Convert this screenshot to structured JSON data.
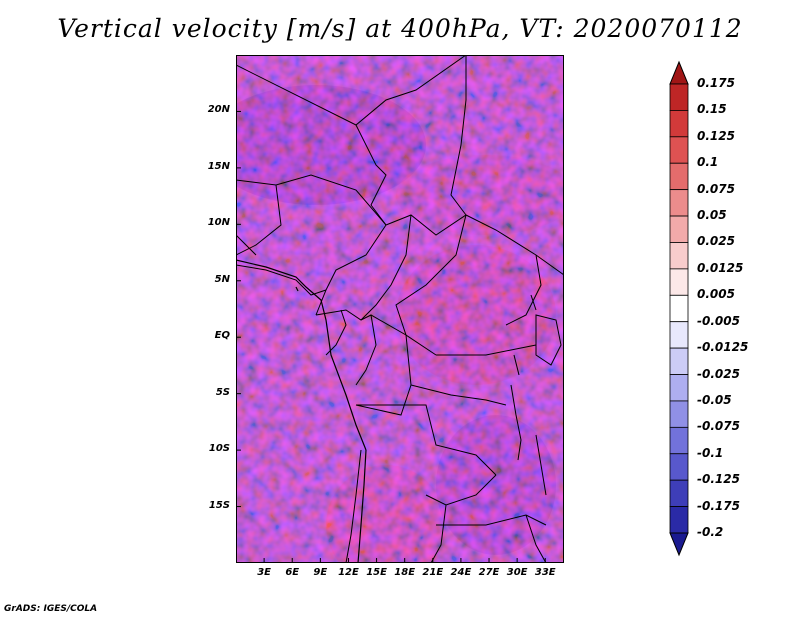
{
  "title": "Vertical velocity [m/s] at 400hPa, VT: 2020070112",
  "footer": "GrADS: IGES/COLA",
  "map": {
    "variable": "Vertical velocity",
    "units": "m/s",
    "level": "400hPa",
    "valid_time": "2020070112",
    "lat_range": [
      -20,
      25
    ],
    "lon_range": [
      0,
      35
    ],
    "lat_ticks": [
      {
        "value": 20,
        "label": "20N"
      },
      {
        "value": 15,
        "label": "15N"
      },
      {
        "value": 10,
        "label": "10N"
      },
      {
        "value": 5,
        "label": "5N"
      },
      {
        "value": 0,
        "label": "EQ"
      },
      {
        "value": -5,
        "label": "5S"
      },
      {
        "value": -10,
        "label": "10S"
      },
      {
        "value": -15,
        "label": "15S"
      }
    ],
    "lon_ticks": [
      {
        "value": 3,
        "label": "3E"
      },
      {
        "value": 6,
        "label": "6E"
      },
      {
        "value": 9,
        "label": "9E"
      },
      {
        "value": 12,
        "label": "12E"
      },
      {
        "value": 15,
        "label": "15E"
      },
      {
        "value": 18,
        "label": "18E"
      },
      {
        "value": 21,
        "label": "21E"
      },
      {
        "value": 24,
        "label": "24E"
      },
      {
        "value": 27,
        "label": "27E"
      },
      {
        "value": 30,
        "label": "30E"
      },
      {
        "value": 33,
        "label": "33E"
      }
    ]
  },
  "colorbar": {
    "labels": [
      "0.175",
      "0.15",
      "0.125",
      "0.1",
      "0.075",
      "0.05",
      "0.025",
      "0.0125",
      "0.005",
      "-0.005",
      "-0.0125",
      "-0.025",
      "-0.05",
      "-0.075",
      "-0.1",
      "-0.125",
      "-0.175",
      "-0.2"
    ],
    "colors": [
      "#a01616",
      "#be2626",
      "#d23a3a",
      "#de5252",
      "#e46c6c",
      "#ec8c8c",
      "#f2aaaa",
      "#f8cccc",
      "#fce8e8",
      "#ffffff",
      "#e8e8fc",
      "#ccccf6",
      "#aeaef0",
      "#9090e6",
      "#7272da",
      "#5858cc",
      "#3e3eb8",
      "#2a2aa6",
      "#1a1a90"
    ]
  }
}
